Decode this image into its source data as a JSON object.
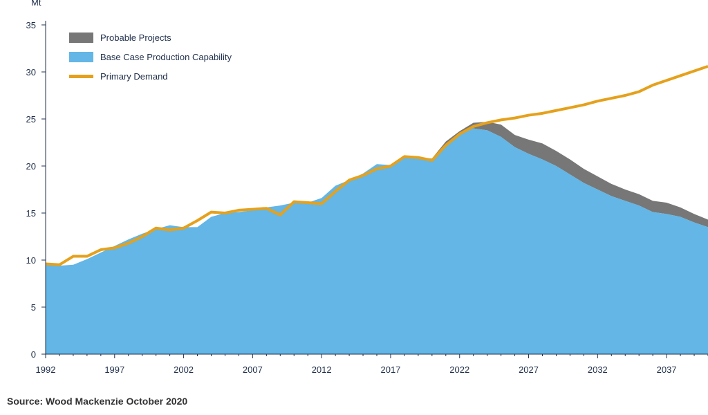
{
  "chart_data": {
    "type": "area",
    "unit_label": "Mt",
    "xlim": [
      1992,
      2040
    ],
    "ylim": [
      0,
      35
    ],
    "y_ticks": [
      0,
      5,
      10,
      15,
      20,
      25,
      30,
      35
    ],
    "x_tick_labels": [
      "1992",
      "1997",
      "2002",
      "2007",
      "2012",
      "2017",
      "2022",
      "2027",
      "2032",
      "2037"
    ],
    "x_tick_values": [
      1992,
      1997,
      2002,
      2007,
      2012,
      2017,
      2022,
      2027,
      2032,
      2037
    ],
    "legend": [
      {
        "name": "Probable Projects",
        "color": "#777777",
        "swatch": "block"
      },
      {
        "name": "Base Case Production Capability",
        "color": "#63b6e6",
        "swatch": "block"
      },
      {
        "name": "Primary Demand",
        "color": "#e5a11c",
        "swatch": "line"
      }
    ],
    "series": [
      {
        "name": "Base Case Production Capability",
        "color": "#63b6e6",
        "x": [
          1992,
          1993,
          1994,
          1995,
          1996,
          1997,
          1998,
          1999,
          2000,
          2001,
          2002,
          2003,
          2004,
          2005,
          2006,
          2007,
          2008,
          2009,
          2010,
          2011,
          2012,
          2013,
          2014,
          2015,
          2016,
          2017,
          2018,
          2019,
          2020,
          2021,
          2022,
          2023,
          2024,
          2025,
          2026,
          2027,
          2028,
          2029,
          2030,
          2031,
          2032,
          2033,
          2034,
          2035,
          2036,
          2037,
          2038,
          2039,
          2040
        ],
        "values": [
          9.5,
          9.4,
          9.5,
          10.1,
          10.8,
          11.5,
          12.2,
          12.8,
          13.3,
          13.7,
          13.5,
          13.5,
          14.6,
          15.0,
          15.1,
          15.3,
          15.6,
          15.8,
          16.1,
          16.1,
          16.6,
          17.9,
          18.5,
          19.2,
          20.2,
          20.1,
          21.0,
          20.9,
          20.8,
          22.3,
          23.3,
          24.0,
          23.8,
          23.1,
          22.0,
          21.3,
          20.7,
          20.0,
          19.1,
          18.2,
          17.5,
          16.8,
          16.3,
          15.8,
          15.1,
          14.9,
          14.6,
          14.0,
          13.5
        ]
      },
      {
        "name": "Probable Projects",
        "color": "#777777",
        "x": [
          1992,
          1993,
          1994,
          1995,
          1996,
          1997,
          1998,
          1999,
          2000,
          2001,
          2002,
          2003,
          2004,
          2005,
          2006,
          2007,
          2008,
          2009,
          2010,
          2011,
          2012,
          2013,
          2014,
          2015,
          2016,
          2017,
          2018,
          2019,
          2020,
          2021,
          2022,
          2023,
          2024,
          2025,
          2026,
          2027,
          2028,
          2029,
          2030,
          2031,
          2032,
          2033,
          2034,
          2035,
          2036,
          2037,
          2038,
          2039,
          2040
        ],
        "values": [
          0,
          0,
          0,
          0,
          0,
          0,
          0,
          0,
          0,
          0,
          0,
          0,
          0,
          0,
          0,
          0,
          0,
          0,
          0,
          0,
          0,
          0,
          0,
          0,
          0,
          0,
          0,
          0,
          0,
          0.3,
          0.4,
          0.6,
          0.9,
          1.3,
          1.3,
          1.5,
          1.7,
          1.6,
          1.6,
          1.5,
          1.4,
          1.3,
          1.2,
          1.2,
          1.2,
          1.2,
          1.0,
          0.9,
          0.8
        ]
      },
      {
        "name": "Primary Demand",
        "color": "#e5a11c",
        "x": [
          1992,
          1993,
          1994,
          1995,
          1996,
          1997,
          1998,
          1999,
          2000,
          2001,
          2002,
          2003,
          2004,
          2005,
          2006,
          2007,
          2008,
          2009,
          2010,
          2011,
          2012,
          2013,
          2014,
          2015,
          2016,
          2017,
          2018,
          2019,
          2020,
          2021,
          2022,
          2023,
          2024,
          2025,
          2026,
          2027,
          2028,
          2029,
          2030,
          2031,
          2032,
          2033,
          2034,
          2035,
          2036,
          2037,
          2038,
          2039,
          2040
        ],
        "values": [
          9.6,
          9.5,
          10.4,
          10.4,
          11.1,
          11.3,
          11.8,
          12.5,
          13.4,
          13.2,
          13.4,
          14.2,
          15.1,
          15.0,
          15.3,
          15.4,
          15.5,
          14.8,
          16.2,
          16.1,
          16.0,
          17.3,
          18.5,
          19.0,
          19.7,
          20.0,
          21.0,
          20.9,
          20.6,
          22.2,
          23.4,
          24.2,
          24.6,
          24.9,
          25.1,
          25.4,
          25.6,
          25.9,
          26.2,
          26.5,
          26.9,
          27.2,
          27.5,
          27.9,
          28.6,
          29.1,
          29.6,
          30.1,
          30.6
        ]
      }
    ]
  },
  "source_note": "Source: Wood Mackenzie October 2020"
}
